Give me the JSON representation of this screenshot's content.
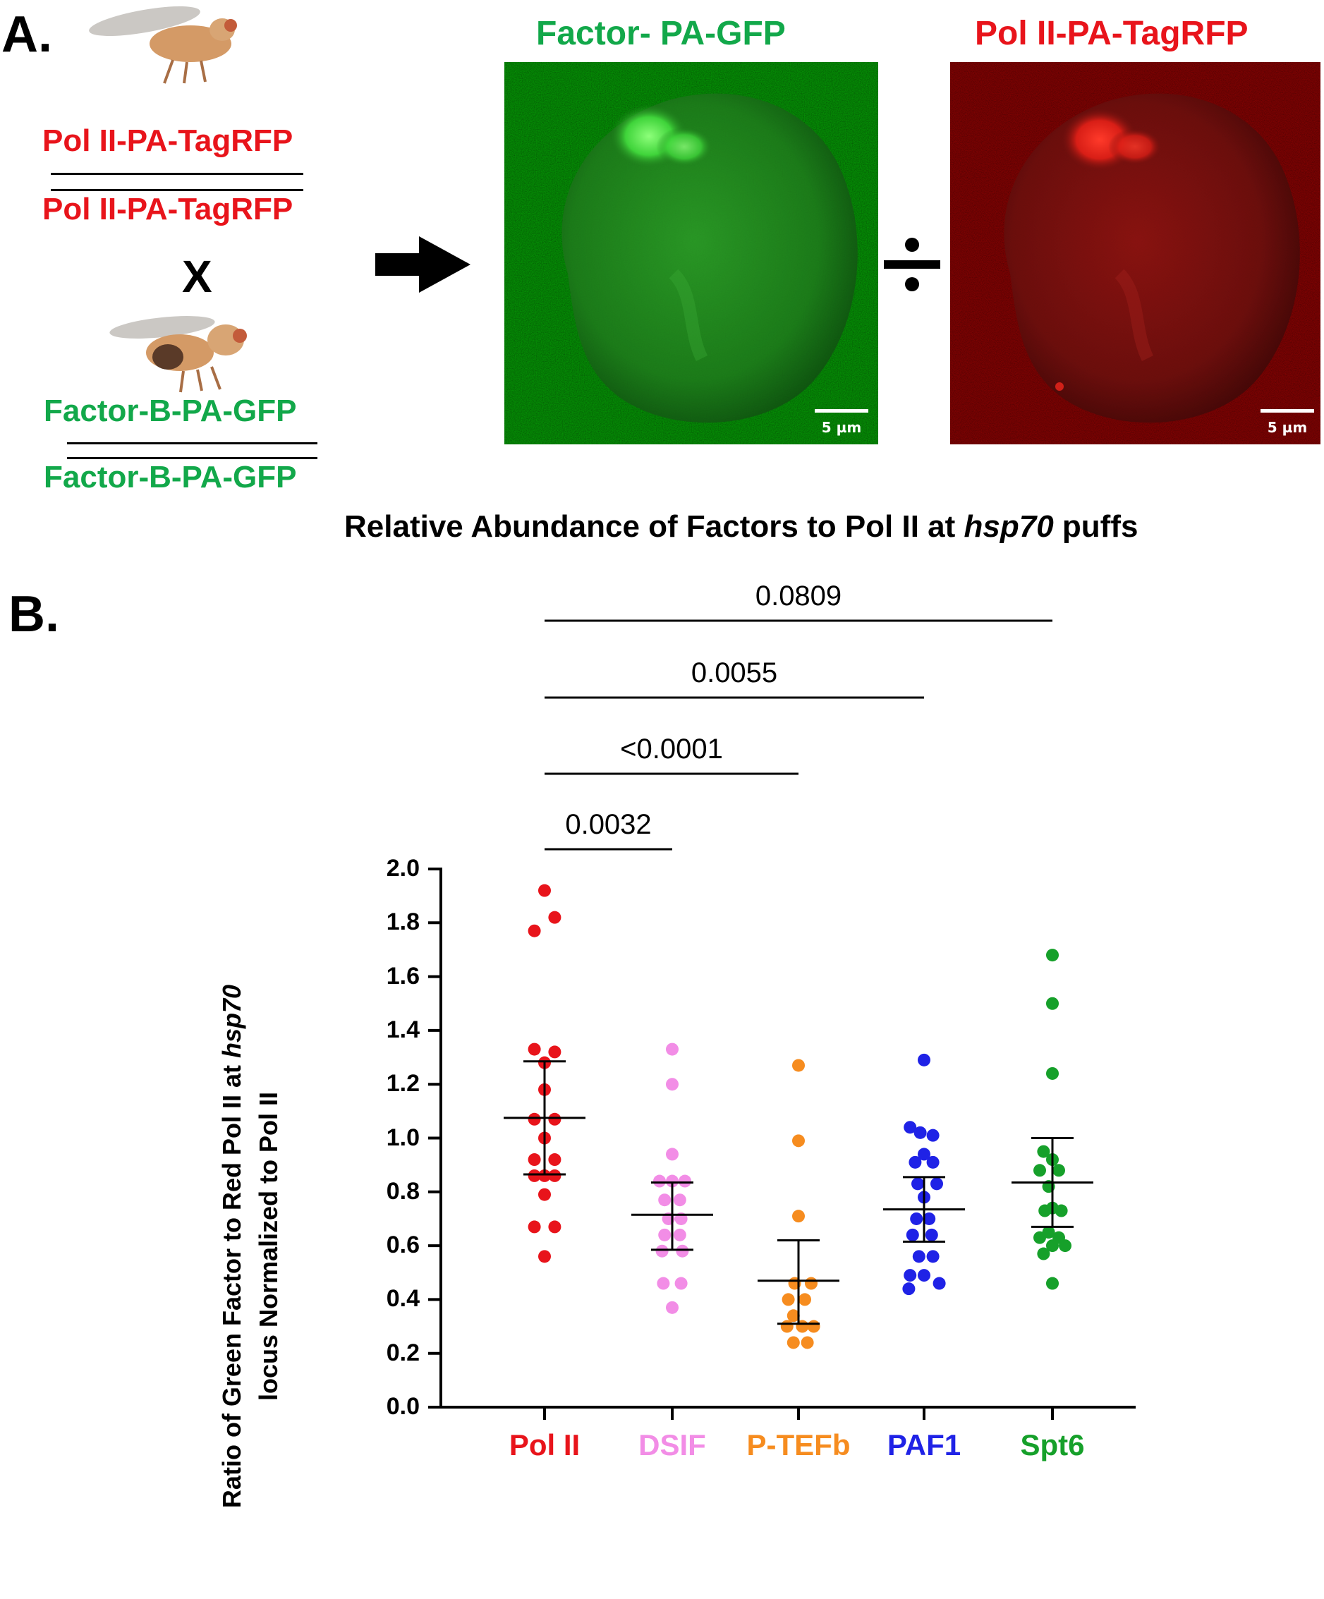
{
  "panel_a": {
    "label": "A.",
    "female_genotype_top": "Pol II-PA-TagRFP",
    "female_genotype_bottom": "Pol II-PA-TagRFP",
    "cross_symbol": "X",
    "male_genotype_top": "Factor-B-PA-GFP",
    "male_genotype_bottom": "Factor-B-PA-GFP",
    "green_image_title": "Factor- PA-GFP",
    "red_image_title": "Pol II-PA-TagRFP",
    "scale_bar_label_green": "5 µm",
    "scale_bar_label_red": "5 µm",
    "colors": {
      "red": "#e8141b",
      "green": "#12a84a"
    }
  },
  "panel_b": {
    "label": "B.",
    "title_prefix": "Relative Abundance of Factors to Pol II at ",
    "title_italic": "hsp70",
    "title_suffix": " puffs",
    "ylabel_line1_prefix": "Ratio of Green Factor to Red Pol II at ",
    "ylabel_line1_italic": "hsp70",
    "ylabel_line2": "locus Normalized to Pol II"
  },
  "chart_data": {
    "type": "scatter",
    "ylim": [
      0.0,
      2.0
    ],
    "yticks": [
      "0.0",
      "0.2",
      "0.4",
      "0.6",
      "0.8",
      "1.0",
      "1.2",
      "1.4",
      "1.6",
      "1.8",
      "2.0"
    ],
    "categories": [
      "Pol II",
      "DSIF",
      "P-TEFb",
      "PAF1",
      "Spt6"
    ],
    "series": [
      {
        "name": "Pol II",
        "color": "#e8141b",
        "mean": 1.075,
        "ci_low": 0.865,
        "ci_high": 1.285,
        "points": [
          [
            0.0,
            1.92
          ],
          [
            -0.08,
            1.77
          ],
          [
            0.08,
            1.82
          ],
          [
            -0.08,
            1.33
          ],
          [
            0.0,
            1.28
          ],
          [
            0.08,
            1.32
          ],
          [
            0.0,
            1.18
          ],
          [
            -0.08,
            1.07
          ],
          [
            0.08,
            1.07
          ],
          [
            0.0,
            1.0
          ],
          [
            -0.08,
            0.92
          ],
          [
            0.08,
            0.92
          ],
          [
            -0.08,
            0.86
          ],
          [
            0.0,
            0.86
          ],
          [
            0.08,
            0.86
          ],
          [
            0.0,
            0.79
          ],
          [
            -0.08,
            0.67
          ],
          [
            0.08,
            0.67
          ],
          [
            0.0,
            0.56
          ]
        ]
      },
      {
        "name": "DSIF",
        "color": "#f28de6",
        "mean": 0.715,
        "ci_low": 0.585,
        "ci_high": 0.835,
        "points": [
          [
            0.0,
            1.33
          ],
          [
            0.0,
            1.2
          ],
          [
            0.0,
            0.94
          ],
          [
            -0.1,
            0.84
          ],
          [
            0.0,
            0.84
          ],
          [
            0.1,
            0.84
          ],
          [
            -0.06,
            0.77
          ],
          [
            0.06,
            0.77
          ],
          [
            -0.03,
            0.7
          ],
          [
            0.07,
            0.7
          ],
          [
            -0.06,
            0.64
          ],
          [
            0.06,
            0.64
          ],
          [
            -0.08,
            0.58
          ],
          [
            0.08,
            0.58
          ],
          [
            -0.07,
            0.46
          ],
          [
            0.07,
            0.46
          ],
          [
            0.0,
            0.37
          ]
        ]
      },
      {
        "name": "P-TEFb",
        "color": "#f68c1f",
        "mean": 0.47,
        "ci_low": 0.31,
        "ci_high": 0.62,
        "points": [
          [
            0.0,
            1.27
          ],
          [
            0.0,
            0.99
          ],
          [
            0.0,
            0.71
          ],
          [
            -0.03,
            0.46
          ],
          [
            0.1,
            0.46
          ],
          [
            -0.08,
            0.4
          ],
          [
            0.05,
            0.4
          ],
          [
            -0.04,
            0.34
          ],
          [
            -0.09,
            0.3
          ],
          [
            0.03,
            0.3
          ],
          [
            0.12,
            0.3
          ],
          [
            -0.04,
            0.24
          ],
          [
            0.07,
            0.24
          ]
        ]
      },
      {
        "name": "PAF1",
        "color": "#1f22e6",
        "mean": 0.735,
        "ci_low": 0.615,
        "ci_high": 0.855,
        "points": [
          [
            0.0,
            1.29
          ],
          [
            -0.11,
            1.04
          ],
          [
            -0.03,
            1.02
          ],
          [
            0.07,
            1.01
          ],
          [
            0.0,
            0.94
          ],
          [
            -0.07,
            0.91
          ],
          [
            0.07,
            0.91
          ],
          [
            -0.05,
            0.83
          ],
          [
            0.1,
            0.83
          ],
          [
            0.0,
            0.78
          ],
          [
            -0.06,
            0.7
          ],
          [
            0.04,
            0.7
          ],
          [
            -0.09,
            0.64
          ],
          [
            0.06,
            0.64
          ],
          [
            -0.04,
            0.56
          ],
          [
            0.07,
            0.56
          ],
          [
            -0.11,
            0.49
          ],
          [
            0.0,
            0.49
          ],
          [
            -0.12,
            0.44
          ],
          [
            0.12,
            0.46
          ]
        ]
      },
      {
        "name": "Spt6",
        "color": "#16a02a",
        "mean": 0.835,
        "ci_low": 0.67,
        "ci_high": 1.0,
        "points": [
          [
            0.0,
            1.68
          ],
          [
            0.0,
            1.5
          ],
          [
            0.0,
            1.24
          ],
          [
            -0.07,
            0.95
          ],
          [
            0.0,
            0.92
          ],
          [
            -0.1,
            0.88
          ],
          [
            0.05,
            0.88
          ],
          [
            -0.03,
            0.82
          ],
          [
            0.0,
            0.74
          ],
          [
            -0.06,
            0.73
          ],
          [
            0.07,
            0.73
          ],
          [
            -0.03,
            0.65
          ],
          [
            -0.1,
            0.63
          ],
          [
            0.05,
            0.63
          ],
          [
            -0.07,
            0.57
          ],
          [
            0.0,
            0.6
          ],
          [
            0.1,
            0.6
          ],
          [
            0.0,
            0.46
          ]
        ]
      }
    ],
    "comparisons": [
      {
        "from": "Pol II",
        "to": "DSIF",
        "p": "0.0032"
      },
      {
        "from": "Pol II",
        "to": "P-TEFb",
        "p": "<0.0001"
      },
      {
        "from": "Pol II",
        "to": "PAF1",
        "p": "0.0055"
      },
      {
        "from": "Pol II",
        "to": "Spt6",
        "p": "0.0809"
      }
    ]
  }
}
